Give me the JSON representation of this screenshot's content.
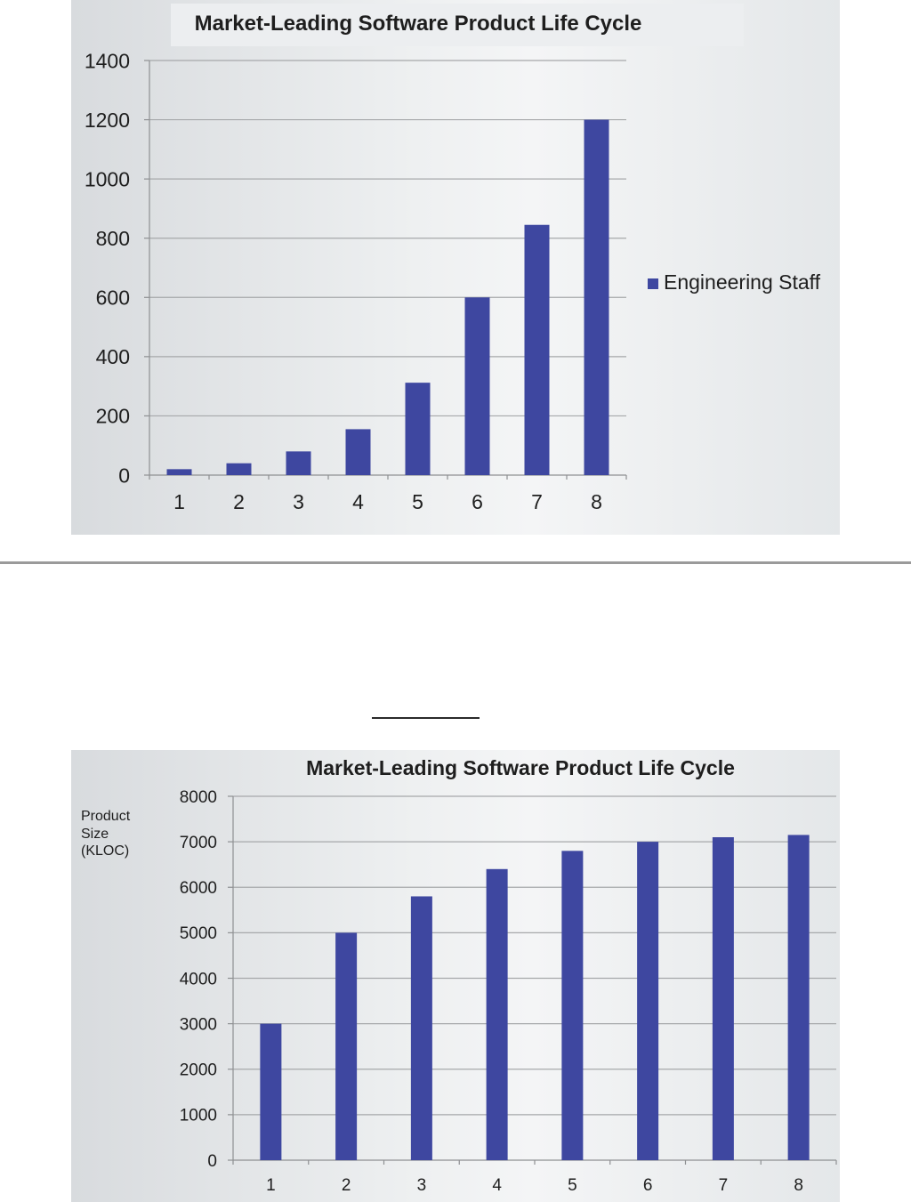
{
  "chart_data": [
    {
      "type": "bar",
      "title": "Market-Leading Software Product Life Cycle",
      "categories": [
        "1",
        "2",
        "3",
        "4",
        "5",
        "6",
        "7",
        "8"
      ],
      "series": [
        {
          "name": "Engineering Staff",
          "values": [
            20,
            40,
            80,
            155,
            312,
            600,
            845,
            1200
          ]
        }
      ],
      "yticks": [
        "0",
        "200",
        "400",
        "600",
        "800",
        "1000",
        "1200",
        "1400"
      ],
      "ylim": [
        0,
        1400
      ],
      "ylabel": "",
      "xlabel": "",
      "grid": true,
      "legend": "right",
      "color": "#3e47a0"
    },
    {
      "type": "bar",
      "title": "Market-Leading Software Product Life Cycle",
      "categories": [
        "1",
        "2",
        "3",
        "4",
        "5",
        "6",
        "7",
        "8"
      ],
      "series": [
        {
          "values": [
            3000,
            5000,
            5800,
            6400,
            6800,
            7000,
            7100,
            7150
          ]
        }
      ],
      "yticks": [
        "0",
        "1000",
        "2000",
        "3000",
        "4000",
        "5000",
        "6000",
        "7000",
        "8000"
      ],
      "ylim": [
        0,
        8000
      ],
      "ylabel": "Product\nSize\n(KLOC)",
      "xlabel": "",
      "grid": true,
      "color": "#3e47a0"
    }
  ]
}
